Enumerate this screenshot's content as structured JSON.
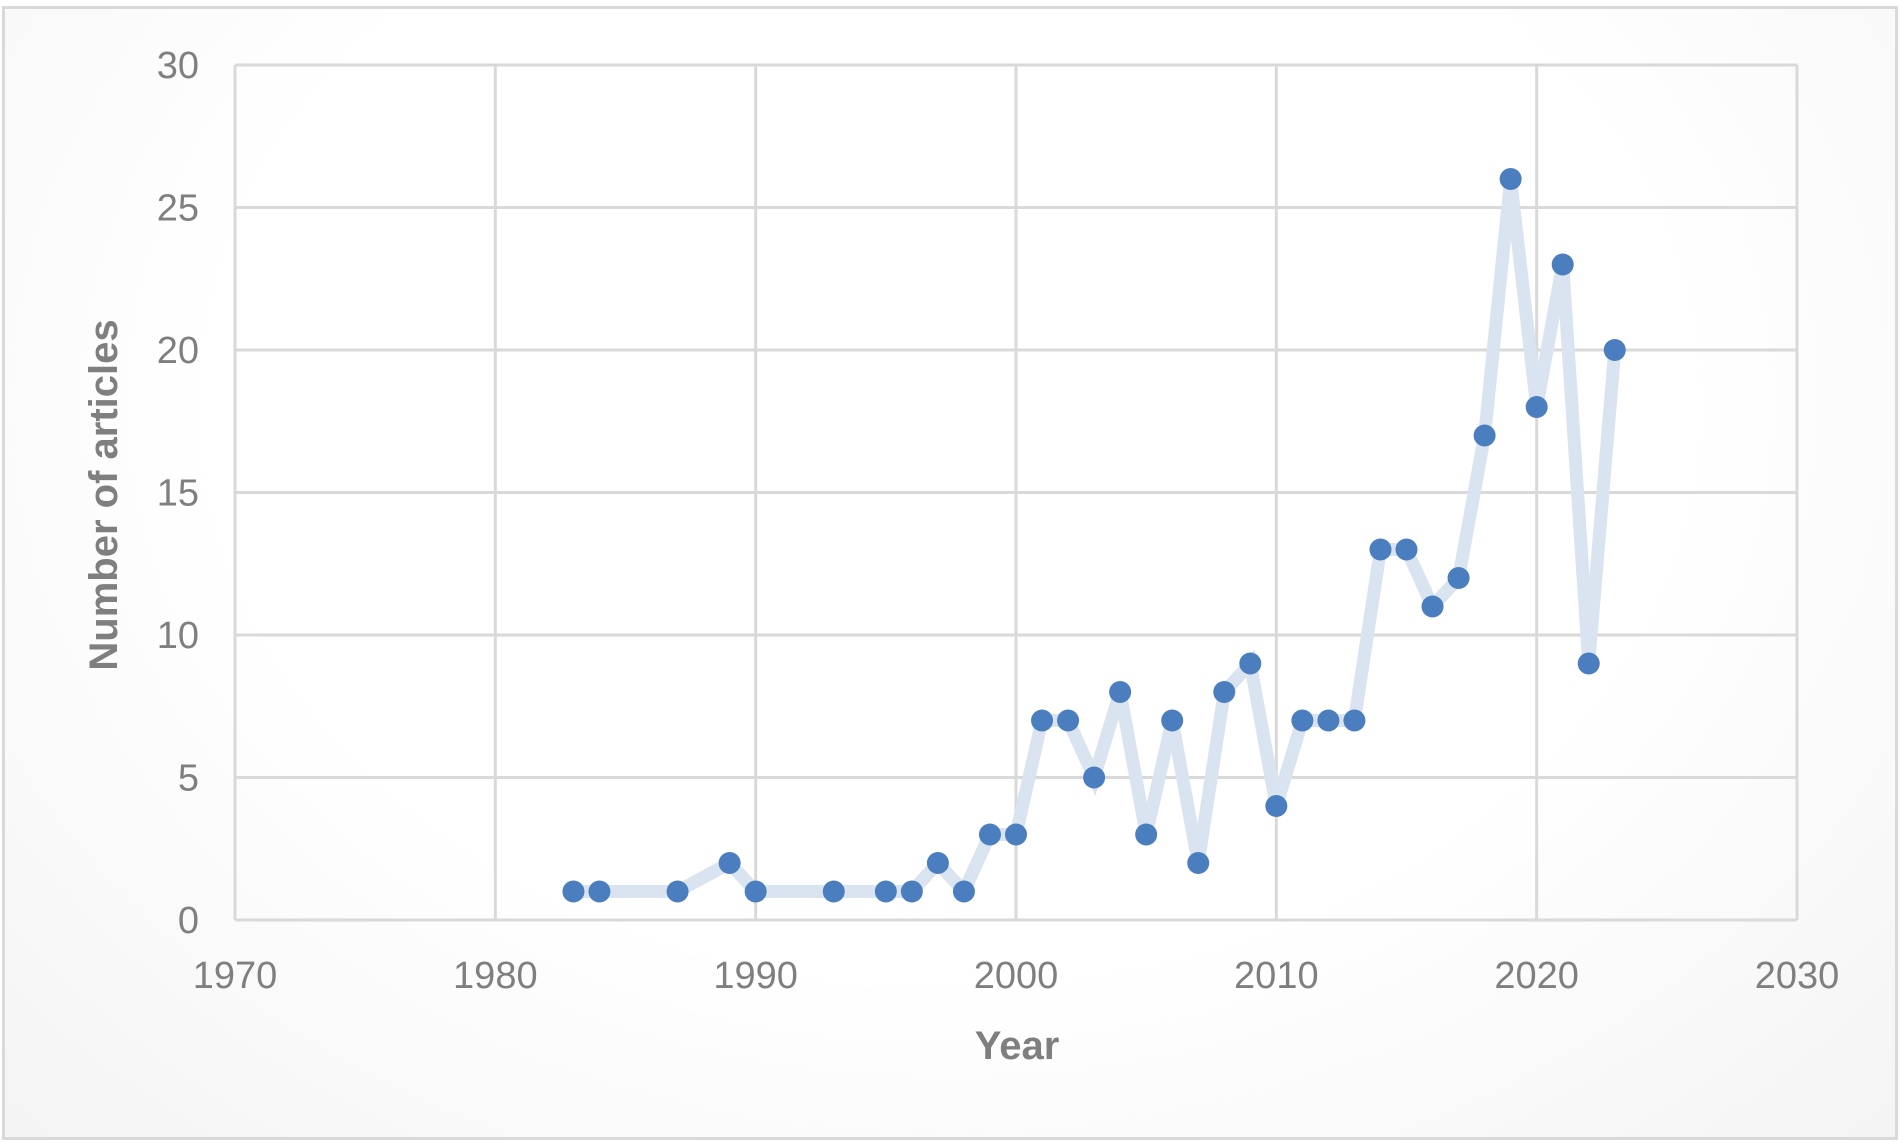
{
  "chart_data": {
    "type": "scatter",
    "title": "",
    "xlabel": "Year",
    "ylabel": "Number of articles",
    "xlim": [
      1970,
      2030
    ],
    "ylim": [
      0,
      30
    ],
    "x_ticks": [
      1970,
      1980,
      1990,
      2000,
      2010,
      2020,
      2030
    ],
    "y_ticks": [
      0,
      5,
      10,
      15,
      20,
      25,
      30
    ],
    "x_tick_labels": [
      "1970",
      "1980",
      "1990",
      "2000",
      "2010",
      "2020",
      "2030"
    ],
    "y_tick_labels": [
      "0",
      "5",
      "10",
      "15",
      "20",
      "25",
      "30"
    ],
    "grid": true,
    "legend": "none",
    "marker_color": "#4a7ebf",
    "line_color": "#dae3f0",
    "series": [
      {
        "x": [
          1983,
          1984,
          1987,
          1989,
          1990,
          1993,
          1995,
          1996,
          1997,
          1998,
          1999,
          2000,
          2001,
          2002,
          2003,
          2004,
          2005,
          2006,
          2007,
          2008,
          2009,
          2010,
          2011,
          2012,
          2013,
          2014,
          2015,
          2016,
          2017,
          2018,
          2019,
          2020,
          2021,
          2022,
          2023
        ],
        "y": [
          1,
          1,
          1,
          2,
          1,
          1,
          1,
          1,
          2,
          1,
          3,
          3,
          7,
          7,
          5,
          8,
          3,
          7,
          2,
          8,
          9,
          4,
          7,
          7,
          7,
          13,
          13,
          11,
          12,
          17,
          26,
          18,
          23,
          9,
          20
        ]
      }
    ]
  }
}
